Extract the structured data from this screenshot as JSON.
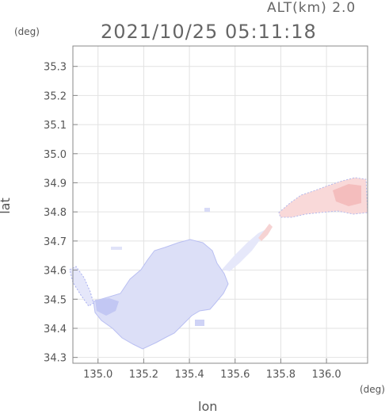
{
  "header": {
    "altitude_label": "ALT(km) 2.0",
    "timestamp": "2021/10/25 05:11:18"
  },
  "axes": {
    "x_title": "lon",
    "y_title": "lat",
    "x_unit": "(deg)",
    "y_unit": "(deg)",
    "x_ticks": [
      "135.0",
      "135.2",
      "135.4",
      "135.6",
      "135.8",
      "136.0"
    ],
    "y_ticks": [
      "35.3",
      "35.2",
      "35.1",
      "35.0",
      "34.9",
      "34.8",
      "34.7",
      "34.6",
      "34.5",
      "34.4",
      "34.3"
    ],
    "x_range": [
      134.89,
      136.18
    ],
    "y_range": [
      34.28,
      35.37
    ],
    "grid": true
  },
  "colors": {
    "frame": "#888888",
    "grid": "#dddddd",
    "blue_fill": "#dcdff7",
    "blue_dark": "#b7bdf0",
    "pink_fill": "#f9d6d6",
    "pink_dark": "#f3b8b8"
  }
}
